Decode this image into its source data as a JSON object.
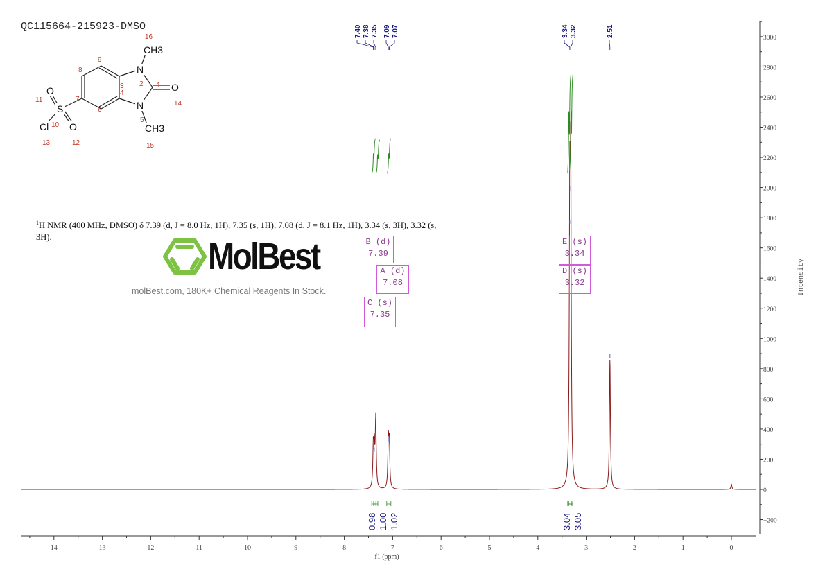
{
  "title": "QC115664-215923-DMSO",
  "description": {
    "nucleus_sup": "1",
    "text": "H NMR (400 MHz, DMSO) δ 7.39 (d, J = 8.0 Hz, 1H), 7.35 (s, 1H), 7.08 (d, J = 8.1 Hz, 1H), 3.34 (s, 3H), 3.32 (s, 3H)."
  },
  "watermark": {
    "brand": "MolBest",
    "tagline": "molBest.com, 180K+ Chemical Reagents In Stock.",
    "logo_color": "#7dc242"
  },
  "structure": {
    "atoms": [
      {
        "symbol": "",
        "number": "1"
      },
      {
        "symbol": "N",
        "number": "2"
      },
      {
        "symbol": "",
        "number": "3"
      },
      {
        "symbol": "",
        "number": "4"
      },
      {
        "symbol": "N",
        "number": "5"
      },
      {
        "symbol": "",
        "number": "6"
      },
      {
        "symbol": "",
        "number": "7"
      },
      {
        "symbol": "",
        "number": "8"
      },
      {
        "symbol": "",
        "number": "9"
      },
      {
        "symbol": "S",
        "number": "10"
      },
      {
        "symbol": "O",
        "number": "11"
      },
      {
        "symbol": "O",
        "number": "12"
      },
      {
        "symbol": "Cl",
        "number": "13"
      },
      {
        "symbol": "O",
        "number": "14"
      },
      {
        "symbol": "CH3",
        "number": "15"
      },
      {
        "symbol": "CH3",
        "number": "16"
      }
    ],
    "number_color": "#c0392b"
  },
  "chart_data": {
    "type": "line",
    "xlabel": "f1 (ppm)",
    "ylabel": "Intensity",
    "xlim": [
      14.7,
      -0.5
    ],
    "ylim": [
      -300,
      3100
    ],
    "x_ticks": [
      14,
      13,
      12,
      11,
      10,
      9,
      8,
      7,
      6,
      5,
      4,
      3,
      2,
      1,
      0
    ],
    "y_ticks": [
      -200,
      0,
      200,
      400,
      600,
      800,
      1000,
      1200,
      1400,
      1600,
      1800,
      2000,
      2200,
      2400,
      2600,
      2800,
      3000
    ],
    "line_color": "#8b1a1a",
    "integral_color": "#2e8b22",
    "label_color": "#1a1a80",
    "peaks": [
      {
        "ppm": 7.4,
        "intensity": 260
      },
      {
        "ppm": 7.38,
        "intensity": 240
      },
      {
        "ppm": 7.35,
        "intensity": 460
      },
      {
        "ppm": 7.09,
        "intensity": 310
      },
      {
        "ppm": 7.07,
        "intensity": 290
      },
      {
        "ppm": 3.34,
        "intensity": 1750
      },
      {
        "ppm": 3.32,
        "intensity": 1970
      },
      {
        "ppm": 2.51,
        "intensity": 860
      },
      {
        "ppm": 0.0,
        "intensity": 35
      }
    ],
    "peak_labels": [
      "7.40",
      "7.38",
      "7.35",
      "7.09",
      "7.07",
      "3.34",
      "3.32",
      "2.51"
    ],
    "multiplets": [
      {
        "id": "B",
        "type": "(d)",
        "shift": "7.39"
      },
      {
        "id": "A",
        "type": "(d)",
        "shift": "7.08"
      },
      {
        "id": "C",
        "type": "(s)",
        "shift": "7.35"
      },
      {
        "id": "E",
        "type": "(s)",
        "shift": "3.34"
      },
      {
        "id": "D",
        "type": "(s)",
        "shift": "3.32"
      }
    ],
    "integrals": [
      {
        "value": "0.98",
        "ppm": 7.39
      },
      {
        "value": "1.00",
        "ppm": 7.35
      },
      {
        "value": "1.02",
        "ppm": 7.08
      },
      {
        "value": "3.04",
        "ppm": 3.34
      },
      {
        "value": "3.05",
        "ppm": 3.32
      }
    ]
  }
}
